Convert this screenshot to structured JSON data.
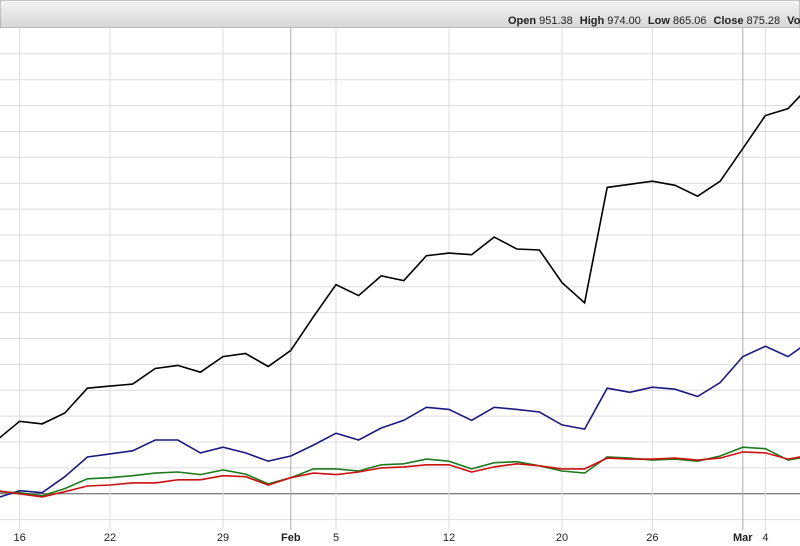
{
  "header": {
    "stats": [
      {
        "label": "Open",
        "value": "951.38"
      },
      {
        "label": "High",
        "value": "974.00"
      },
      {
        "label": "Low",
        "value": "865.06"
      },
      {
        "label": "Close",
        "value": "875.28"
      },
      {
        "label": "Vol",
        "value": ""
      }
    ]
  },
  "chart_data": {
    "type": "line",
    "categories": [
      null,
      "16",
      null,
      null,
      null,
      "22",
      null,
      null,
      null,
      null,
      "29",
      null,
      null,
      "Feb",
      null,
      "5",
      null,
      null,
      null,
      null,
      "12",
      null,
      null,
      null,
      null,
      "20",
      null,
      null,
      null,
      "26",
      null,
      null,
      null,
      "Mar",
      "4",
      null,
      null
    ],
    "series": [
      {
        "color": "#000000",
        "values": [
          10.4,
          14.0,
          13.5,
          15.6,
          20.4,
          20.8,
          21.2,
          24.2,
          24.8,
          23.5,
          26.5,
          27.1,
          24.6,
          27.7,
          34.2,
          40.4,
          38.3,
          42.1,
          41.2,
          46.0,
          46.5,
          46.2,
          49.6,
          47.3,
          47.1,
          40.8,
          36.9,
          59.2,
          59.8,
          60.4,
          59.6,
          57.5,
          60.4,
          66.7,
          73.1,
          74.4,
          79.0
        ]
      },
      {
        "color": "#1a1a80",
        "values": [
          -0.8,
          0.6,
          0.2,
          3.3,
          7.1,
          7.7,
          8.3,
          10.4,
          10.4,
          7.9,
          9.0,
          7.9,
          6.3,
          7.3,
          9.4,
          11.7,
          10.4,
          12.7,
          14.2,
          16.7,
          16.3,
          14.2,
          16.7,
          16.3,
          15.8,
          13.3,
          12.5,
          20.4,
          19.6,
          20.6,
          20.2,
          18.8,
          21.5,
          26.5,
          28.5,
          26.5,
          29.6
        ]
      },
      {
        "color": "#1f7a1f",
        "values": [
          0.4,
          0.2,
          -0.4,
          1.0,
          2.9,
          3.1,
          3.5,
          4.0,
          4.2,
          3.7,
          4.6,
          3.8,
          1.9,
          3.1,
          4.8,
          4.8,
          4.4,
          5.6,
          5.8,
          6.7,
          6.3,
          4.8,
          6.0,
          6.2,
          5.4,
          4.4,
          4.0,
          7.1,
          6.9,
          6.5,
          6.7,
          6.3,
          7.3,
          9.0,
          8.7,
          6.5,
          7.3
        ]
      },
      {
        "color": "#cc1111",
        "values": [
          0.6,
          0,
          -0.6,
          0.4,
          1.5,
          1.7,
          2.1,
          2.1,
          2.7,
          2.7,
          3.5,
          3.3,
          1.7,
          3.1,
          4.0,
          3.7,
          4.2,
          5.0,
          5.2,
          5.6,
          5.6,
          4.2,
          5.2,
          5.8,
          5.4,
          4.8,
          4.8,
          6.9,
          6.7,
          6.7,
          6.9,
          6.5,
          6.9,
          8.1,
          7.9,
          6.7,
          7.5
        ]
      }
    ],
    "ylim": [
      -7,
      90
    ],
    "yticks": [
      -5,
      0,
      5,
      10,
      15,
      20,
      25,
      30,
      35,
      40,
      45,
      50,
      55,
      60,
      65,
      70,
      75,
      80,
      85
    ],
    "grid": true
  }
}
